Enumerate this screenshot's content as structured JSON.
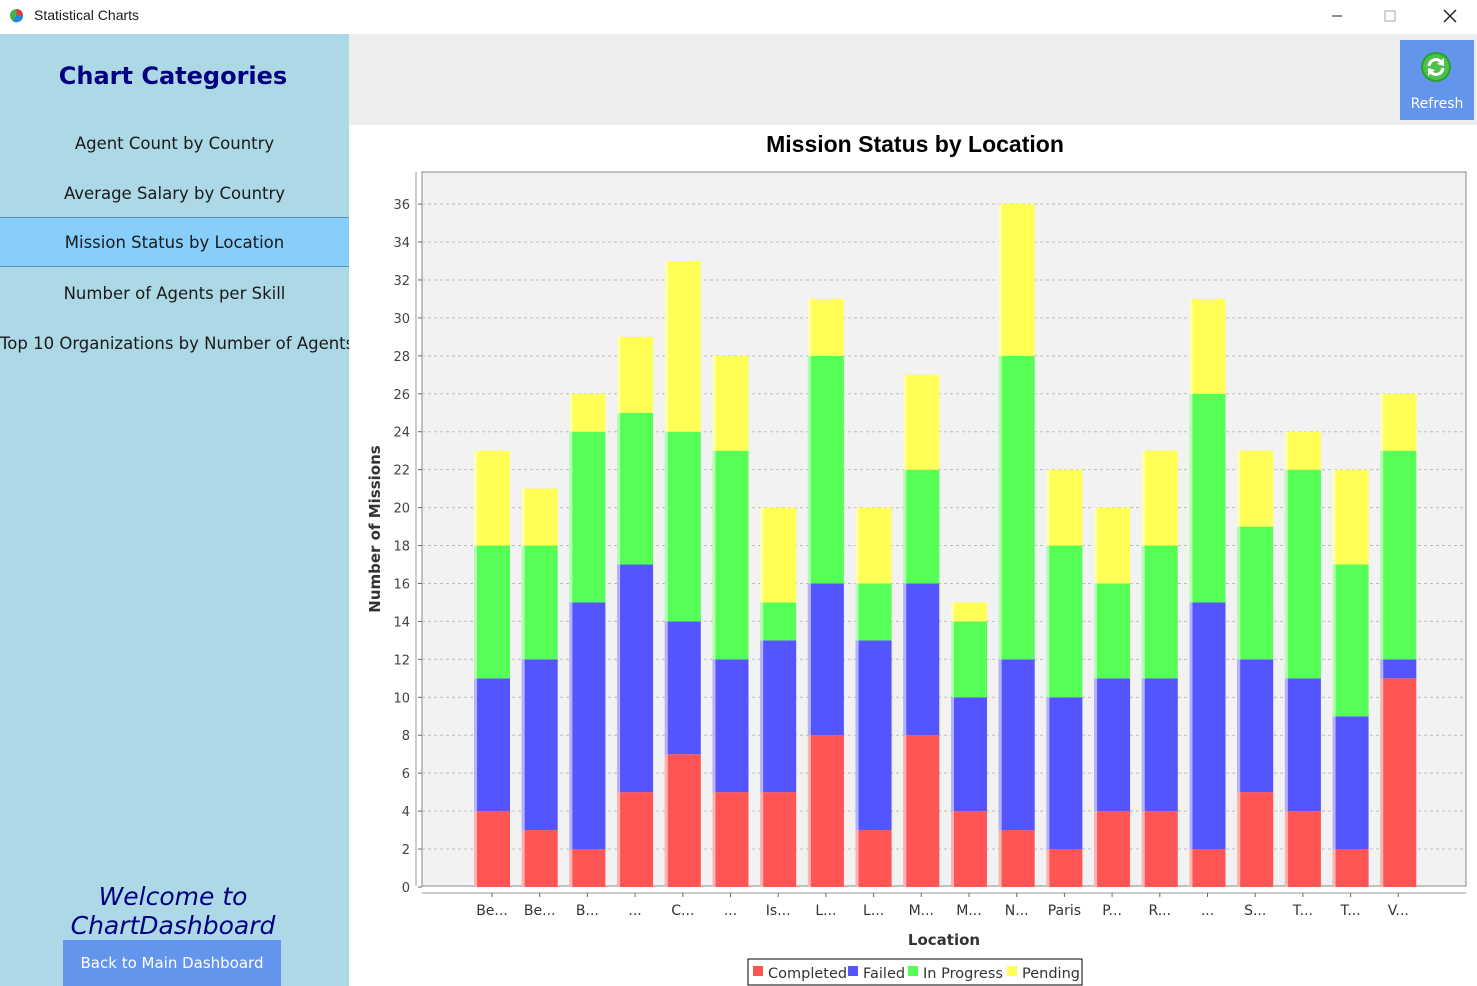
{
  "window": {
    "title": "Statistical Charts",
    "icon": "pie-chart-icon"
  },
  "sidebar": {
    "title": "Chart Categories",
    "items": [
      {
        "label": "Agent Count by Country",
        "selected": false
      },
      {
        "label": "Average Salary by Country",
        "selected": false
      },
      {
        "label": "Mission Status by Location",
        "selected": true
      },
      {
        "label": "Number of Agents per Skill",
        "selected": false
      },
      {
        "label": "Top 10 Organizations by Number of Agents",
        "selected": false
      }
    ],
    "welcome": "Welcome to ChartDashboard",
    "back_button": "Back to Main Dashboard"
  },
  "toolbar": {
    "refresh_label": "Refresh",
    "refresh_icon": "refresh-icon"
  },
  "colors": {
    "sidebar_bg": "#add8e6",
    "selected_item": "#87cefa",
    "title_navy": "#000080",
    "button_blue": "#6495ed",
    "completed": "#ff5555",
    "failed": "#5555ff",
    "in_progress": "#55ff55",
    "pending": "#ffff55"
  },
  "chart_data": {
    "type": "bar",
    "stacked": true,
    "title": "Mission Status by Location",
    "xlabel": "Location",
    "ylabel": "Number of Missions",
    "ylim": [
      0,
      37.5
    ],
    "yticks": [
      0,
      2,
      4,
      6,
      8,
      10,
      12,
      14,
      16,
      18,
      20,
      22,
      24,
      26,
      28,
      30,
      32,
      34,
      36
    ],
    "grid": true,
    "legend_position": "bottom",
    "categories": [
      "Be...",
      "Be...",
      "B...",
      "...",
      "C...",
      "...",
      "Is...",
      "L...",
      "L...",
      "M...",
      "M...",
      "N...",
      "Paris",
      "P...",
      "R...",
      "...",
      "S...",
      "T...",
      "T...",
      "V..."
    ],
    "series": [
      {
        "name": "Completed",
        "color": "#ff5555",
        "values": [
          4,
          3,
          2,
          5,
          7,
          5,
          5,
          8,
          3,
          8,
          4,
          3,
          2,
          4,
          4,
          2,
          5,
          4,
          2,
          11
        ]
      },
      {
        "name": "Failed",
        "color": "#5555ff",
        "values": [
          7,
          9,
          13,
          12,
          7,
          7,
          8,
          8,
          10,
          8,
          6,
          9,
          8,
          7,
          7,
          13,
          7,
          7,
          7,
          1
        ]
      },
      {
        "name": "In Progress",
        "color": "#55ff55",
        "values": [
          7,
          6,
          9,
          8,
          10,
          11,
          2,
          12,
          3,
          6,
          4,
          16,
          8,
          5,
          7,
          11,
          7,
          11,
          8,
          11
        ]
      },
      {
        "name": "Pending",
        "color": "#ffff55",
        "values": [
          5,
          3,
          2,
          4,
          9,
          5,
          5,
          3,
          4,
          5,
          1,
          8,
          4,
          4,
          5,
          5,
          4,
          2,
          5,
          3
        ]
      }
    ]
  }
}
